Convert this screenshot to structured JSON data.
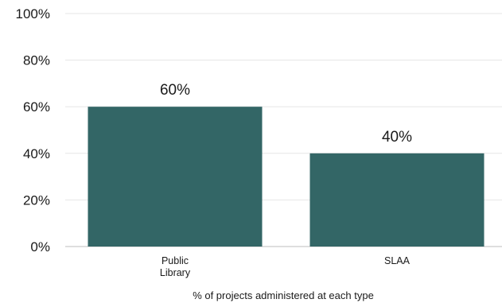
{
  "chart_data": {
    "type": "bar",
    "categories": [
      "Public Library",
      "SLAA"
    ],
    "category_lines": [
      [
        "Public",
        "Library"
      ],
      [
        "SLAA"
      ]
    ],
    "values": [
      60,
      40
    ],
    "value_labels": [
      "60%",
      "40%"
    ],
    "xlabel": "% of projects administered at each type",
    "ylabel": "",
    "ylim": [
      0,
      100
    ],
    "yticks": [
      0,
      20,
      40,
      60,
      80,
      100
    ],
    "ytick_labels": [
      "0%",
      "20%",
      "40%",
      "60%",
      "80%",
      "100%"
    ],
    "grid": true,
    "legend": "none",
    "bar_color": "#336666"
  }
}
